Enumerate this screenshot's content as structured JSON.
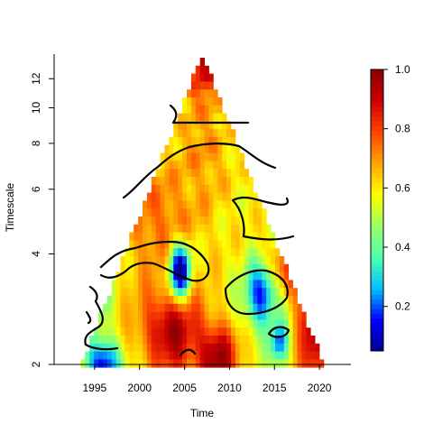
{
  "chart_data": {
    "type": "heatmap",
    "title": "",
    "xlabel": "Time",
    "ylabel": "Timescale",
    "x_ticks": [
      1995,
      2000,
      2005,
      2010,
      2015,
      2020
    ],
    "y_ticks": [
      2,
      4,
      6,
      8,
      10,
      12
    ],
    "xlim": [
      1990.5,
      2023.5
    ],
    "ylim": [
      2,
      14
    ],
    "y_scale": "log",
    "colorbar": {
      "ticks": [
        0.2,
        0.4,
        0.6,
        0.8,
        1.0
      ],
      "tick_labels": [
        "0.2",
        "0.4",
        "0.6",
        "0.8",
        "1.0"
      ],
      "range": [
        0.05,
        1.0
      ],
      "colors": [
        "#00008b",
        "#0000ff",
        "#00bfff",
        "#4fffaf",
        "#9aff66",
        "#ffff00",
        "#ffa500",
        "#ff4500",
        "#cc0000",
        "#8b0000"
      ]
    },
    "time_range": [
      1993.5,
      2020.5
    ],
    "cone_apex": {
      "time": 2007,
      "timescale": 14
    },
    "contour_level": 0.6,
    "hotspots": [
      {
        "time": 2003.5,
        "timescale": 2.5,
        "value": 0.95,
        "spread_time": 3.5,
        "spread_scale": 0.4
      },
      {
        "time": 2008.5,
        "timescale": 2.1,
        "value": 1.0,
        "spread_time": 2.2,
        "spread_scale": 0.2
      },
      {
        "time": 2019.5,
        "timescale": 2.6,
        "value": 0.95,
        "spread_time": 1.8,
        "spread_scale": 0.8
      },
      {
        "time": 2016.5,
        "timescale": 3.8,
        "value": 0.9,
        "spread_time": 2.5,
        "spread_scale": 0.4
      },
      {
        "time": 2002,
        "timescale": 5.0,
        "value": 0.75,
        "spread_time": 5,
        "spread_scale": 1.0
      },
      {
        "time": 2007,
        "timescale": 7.5,
        "value": 0.7,
        "spread_time": 3,
        "spread_scale": 1.3
      },
      {
        "time": 2007,
        "timescale": 13,
        "value": 0.9,
        "spread_time": 2,
        "spread_scale": 1.5
      },
      {
        "time": 2004.5,
        "timescale": 3.6,
        "value": 0.05,
        "spread_time": 1.2,
        "spread_scale": 0.25
      },
      {
        "time": 2013.5,
        "timescale": 3.1,
        "value": 0.15,
        "spread_time": 1.8,
        "spread_scale": 0.3
      },
      {
        "time": 2017,
        "timescale": 4.8,
        "value": 0.05,
        "spread_time": 1.6,
        "spread_scale": 0.4
      },
      {
        "time": 1996,
        "timescale": 2.0,
        "value": 0.1,
        "spread_time": 1.8,
        "spread_scale": 0.12
      },
      {
        "time": 2015.5,
        "timescale": 2.3,
        "value": 0.2,
        "spread_time": 1.0,
        "spread_scale": 0.1
      },
      {
        "time": 1995,
        "timescale": 3.3,
        "value": 0.3,
        "spread_time": 1.5,
        "spread_scale": 0.4
      }
    ],
    "base_value": 0.58
  }
}
